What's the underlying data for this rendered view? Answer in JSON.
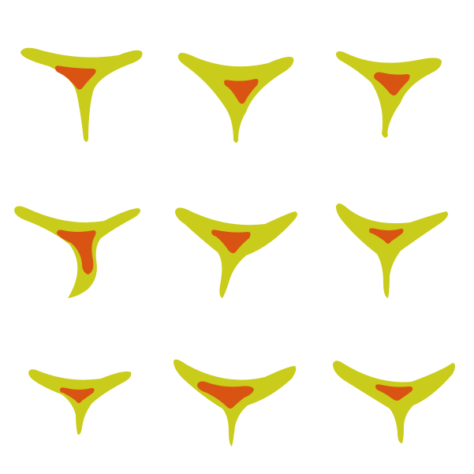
{
  "scene": {
    "background_color": "#ffffff",
    "outer_color": "#c9cc1a",
    "inner_color": "#d95412",
    "shape_count": 9,
    "grid": {
      "rows": 3,
      "cols": 3
    },
    "shapes": [
      {
        "name": "shape-r1-c1",
        "row": 1,
        "col": 1
      },
      {
        "name": "shape-r1-c2",
        "row": 1,
        "col": 2
      },
      {
        "name": "shape-r1-c3",
        "row": 1,
        "col": 3
      },
      {
        "name": "shape-r2-c1",
        "row": 2,
        "col": 1
      },
      {
        "name": "shape-r2-c2",
        "row": 2,
        "col": 2
      },
      {
        "name": "shape-r2-c3",
        "row": 2,
        "col": 3
      },
      {
        "name": "shape-r3-c1",
        "row": 3,
        "col": 1
      },
      {
        "name": "shape-r3-c2",
        "row": 3,
        "col": 2
      },
      {
        "name": "shape-r3-c3",
        "row": 3,
        "col": 3
      }
    ]
  }
}
